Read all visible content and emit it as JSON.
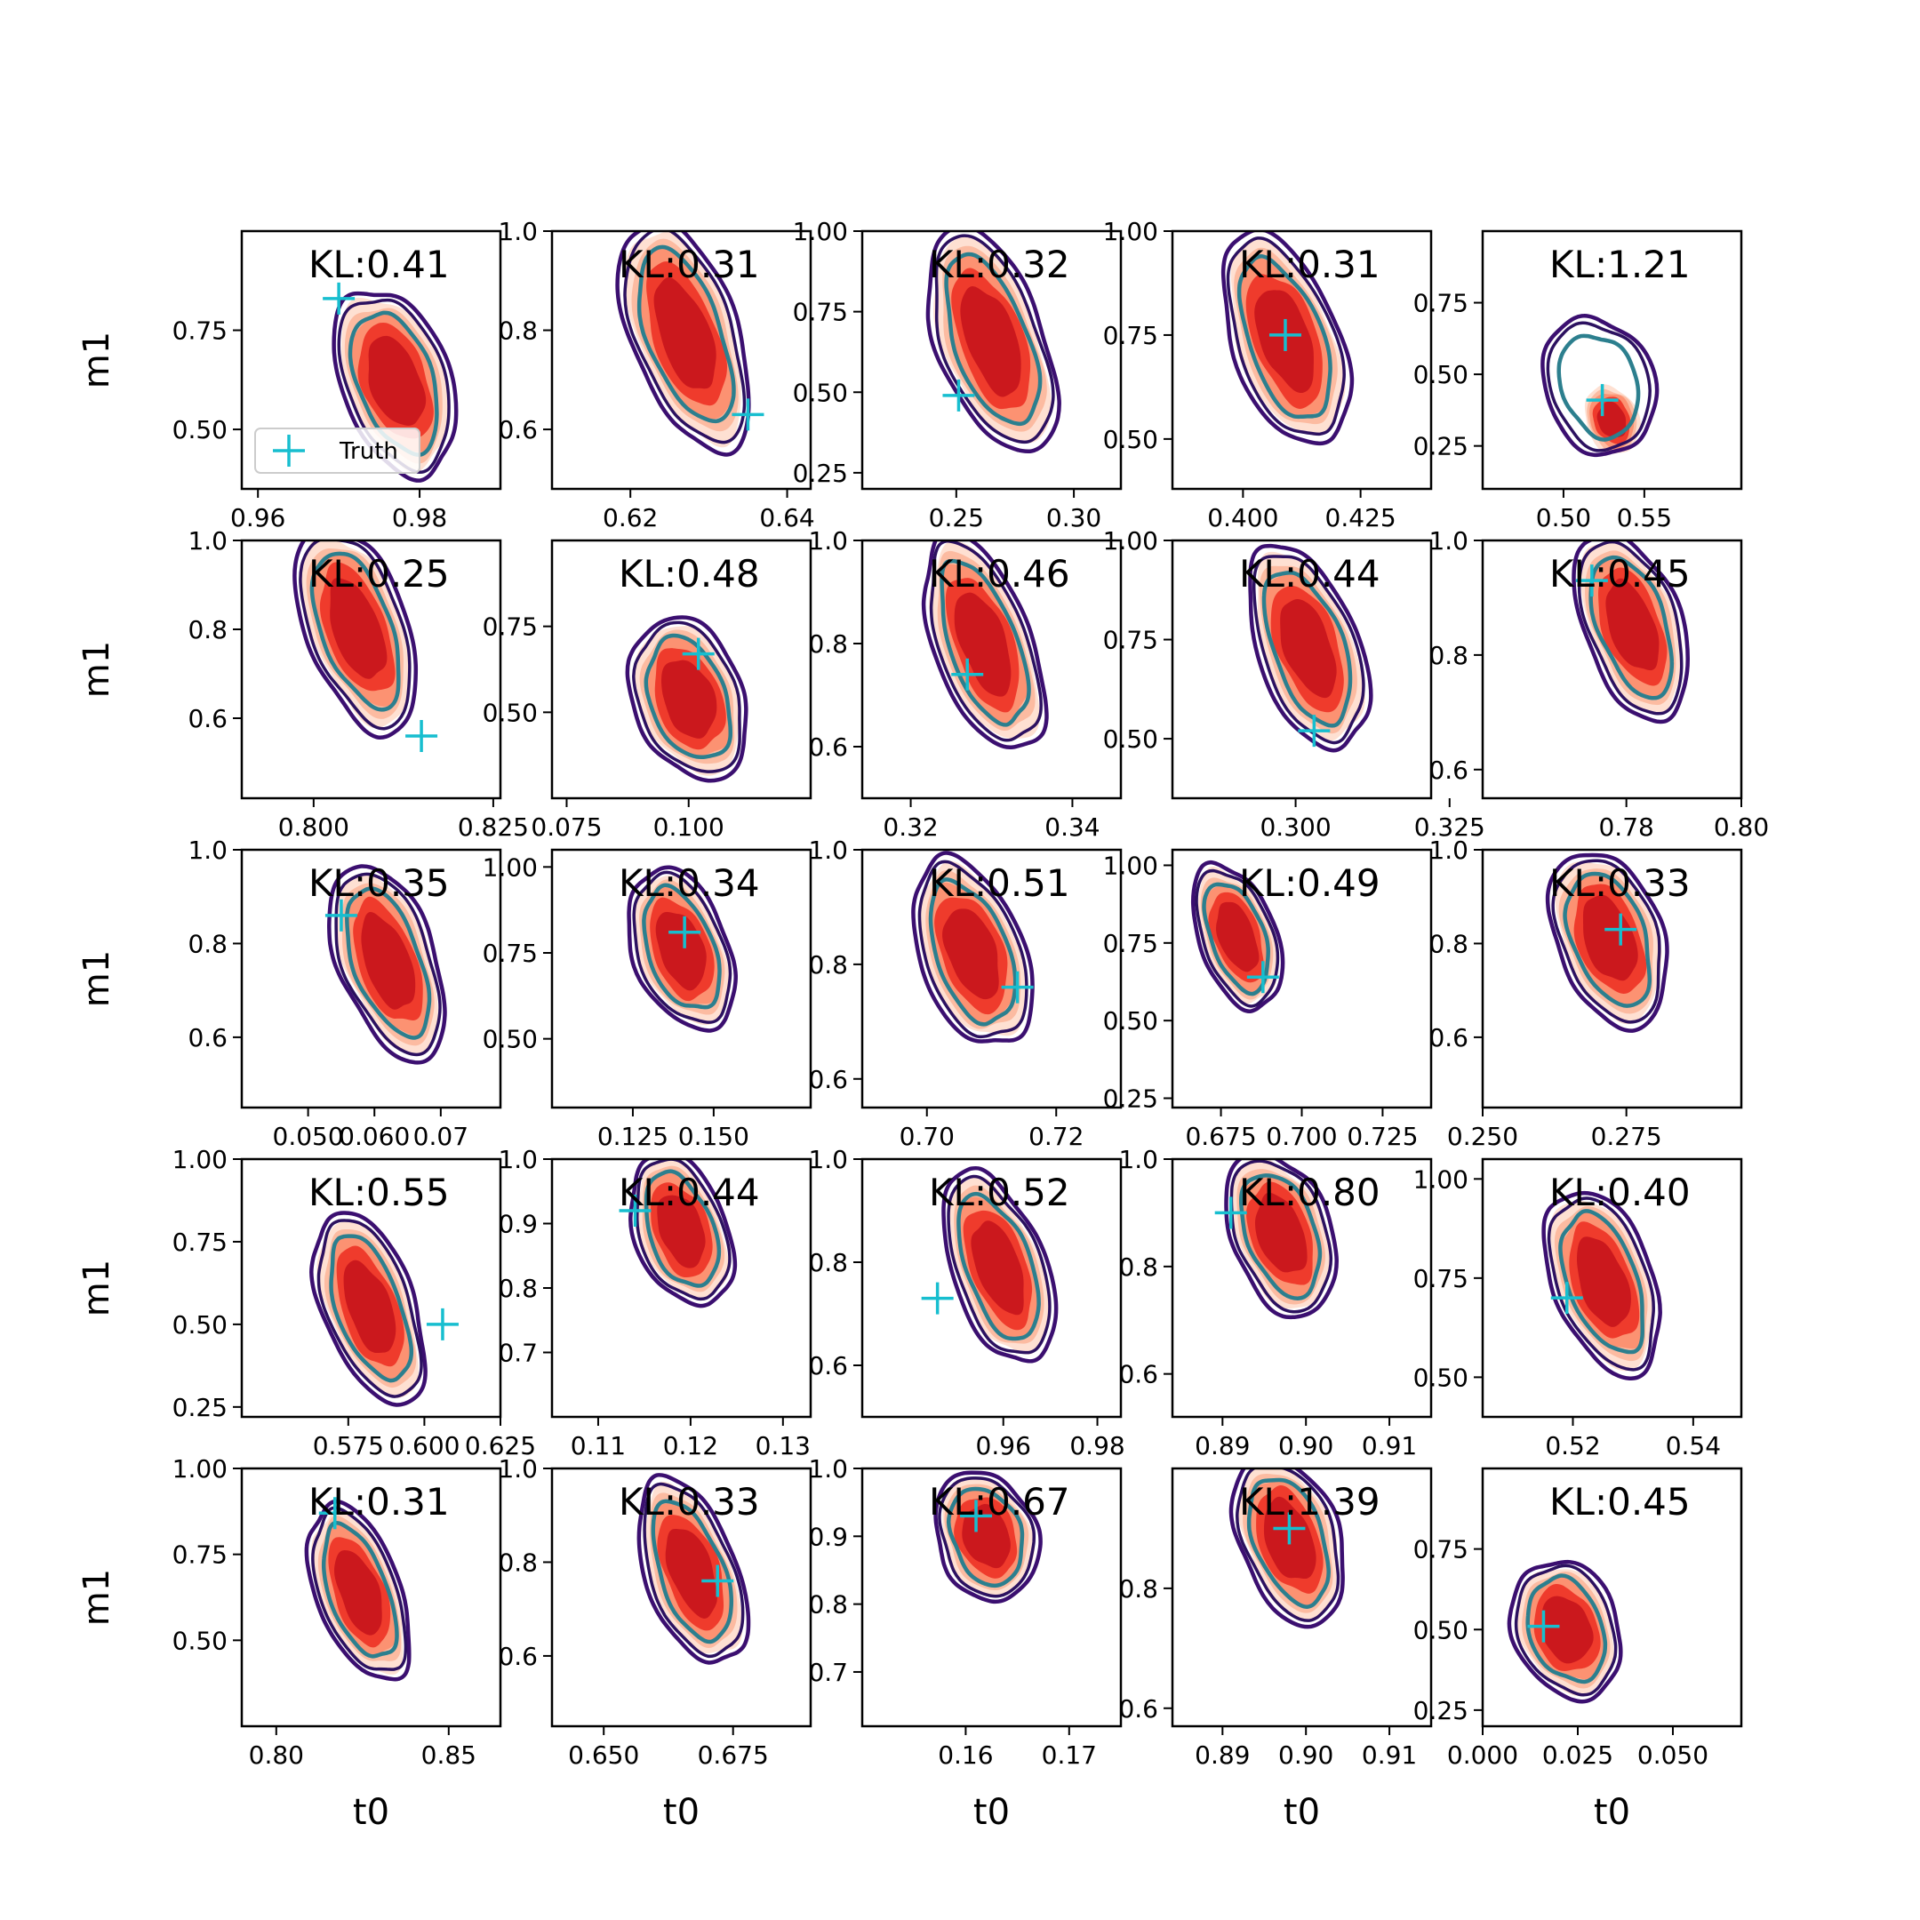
{
  "chart_data": {
    "type": "contour",
    "layout": "5x5 grid of kernel-density contour subplots",
    "xlabel": "t0",
    "ylabel": "m1",
    "legend": {
      "label": "Truth",
      "marker": "+",
      "color": "#17becf",
      "placement": "lower-left of first panel"
    },
    "colors": {
      "filled_levels": [
        "#fee0d2",
        "#fcbba1",
        "#fc9272",
        "#ef3b2c",
        "#cb181d"
      ],
      "outer_contour": "#3b0f70",
      "middle_contour": "#2c1160",
      "inner_contour": "#2c7f8e",
      "truth_marker": "#17becf"
    },
    "panels": [
      {
        "kl": "KL:0.41",
        "xlim": [
          0.958,
          0.99
        ],
        "ylim": [
          0.35,
          1.0
        ],
        "xticks": [
          "0.96",
          "0.98"
        ],
        "xtv": [
          0.96,
          0.98
        ],
        "yticks": [
          "0.75",
          "0.50"
        ],
        "ytv": [
          0.75,
          0.5
        ],
        "truth": [
          0.97,
          0.83
        ],
        "center": [
          0.977,
          0.62
        ],
        "spread": [
          0.006,
          0.2
        ],
        "tilt": -0.9,
        "shift": [
          0,
          0
        ]
      },
      {
        "kl": "KL:0.31",
        "xlim": [
          0.61,
          0.643
        ],
        "ylim": [
          0.48,
          1.0
        ],
        "xticks": [
          "0.62",
          "0.64"
        ],
        "xtv": [
          0.62,
          0.64
        ],
        "yticks": [
          "1.0",
          "0.8",
          "0.6"
        ],
        "ytv": [
          1.0,
          0.8,
          0.6
        ],
        "truth": [
          0.635,
          0.63
        ],
        "center": [
          0.627,
          0.79
        ],
        "spread": [
          0.006,
          0.2
        ],
        "tilt": -0.8,
        "shift": [
          0,
          0
        ]
      },
      {
        "kl": "KL:0.32",
        "xlim": [
          0.21,
          0.32
        ],
        "ylim": [
          0.2,
          1.0
        ],
        "xticks": [
          "0.25",
          "0.30"
        ],
        "xtv": [
          0.25,
          0.3
        ],
        "yticks": [
          "1.00",
          "0.75",
          "0.50",
          "0.25"
        ],
        "ytv": [
          1.0,
          0.75,
          0.5,
          0.25
        ],
        "truth": [
          0.251,
          0.49
        ],
        "center": [
          0.265,
          0.66
        ],
        "spread": [
          0.02,
          0.3
        ],
        "tilt": -0.85,
        "shift": [
          0,
          0
        ]
      },
      {
        "kl": "KL:0.31",
        "xlim": [
          0.385,
          0.44
        ],
        "ylim": [
          0.38,
          1.0
        ],
        "xticks": [
          "0.400",
          "0.425"
        ],
        "xtv": [
          0.4,
          0.425
        ],
        "yticks": [
          "1.00",
          "0.75",
          "0.50"
        ],
        "ytv": [
          1.0,
          0.75,
          0.5
        ],
        "truth": [
          0.409,
          0.75
        ],
        "center": [
          0.409,
          0.74
        ],
        "spread": [
          0.01,
          0.22
        ],
        "tilt": -0.8,
        "shift": [
          0,
          0
        ]
      },
      {
        "kl": "KL:1.21",
        "xlim": [
          0.45,
          0.61
        ],
        "ylim": [
          0.1,
          1.0
        ],
        "xticks": [
          "0.50",
          "0.55"
        ],
        "xtv": [
          0.5,
          0.55
        ],
        "yticks": [
          "0.75",
          "0.50",
          "0.25"
        ],
        "ytv": [
          0.75,
          0.5,
          0.25
        ],
        "truth": [
          0.524,
          0.41
        ],
        "center": [
          0.522,
          0.46
        ],
        "spread": [
          0.03,
          0.2
        ],
        "tilt": -0.85,
        "shift": [
          0.008,
          -0.12
        ]
      },
      {
        "kl": "KL:0.25",
        "xlim": [
          0.79,
          0.826
        ],
        "ylim": [
          0.42,
          1.0
        ],
        "xticks": [
          "0.800",
          "0.825"
        ],
        "xtv": [
          0.8,
          0.825
        ],
        "yticks": [
          "1.0",
          "0.8",
          "0.6"
        ],
        "ytv": [
          1.0,
          0.8,
          0.6
        ],
        "truth": [
          0.815,
          0.56
        ],
        "center": [
          0.806,
          0.8
        ],
        "spread": [
          0.006,
          0.2
        ],
        "tilt": -0.8,
        "shift": [
          0,
          0
        ]
      },
      {
        "kl": "KL:0.48",
        "xlim": [
          0.072,
          0.125
        ],
        "ylim": [
          0.25,
          1.0
        ],
        "xticks": [
          "0.075",
          "0.100"
        ],
        "xtv": [
          0.075,
          0.1
        ],
        "yticks": [
          "0.75",
          "0.50"
        ],
        "ytv": [
          0.75,
          0.5
        ],
        "truth": [
          0.102,
          0.67
        ],
        "center": [
          0.1,
          0.54
        ],
        "spread": [
          0.01,
          0.2
        ],
        "tilt": -0.85,
        "shift": [
          0,
          0
        ]
      },
      {
        "kl": "KL:0.46",
        "xlim": [
          0.314,
          0.346
        ],
        "ylim": [
          0.5,
          1.0
        ],
        "xticks": [
          "0.32",
          "0.34"
        ],
        "xtv": [
          0.32,
          0.34
        ],
        "yticks": [
          "1.0",
          "0.8",
          "0.6"
        ],
        "ytv": [
          1.0,
          0.8,
          0.6
        ],
        "truth": [
          0.327,
          0.74
        ],
        "center": [
          0.329,
          0.8
        ],
        "spread": [
          0.005,
          0.18
        ],
        "tilt": -0.8,
        "shift": [
          0,
          0
        ]
      },
      {
        "kl": "KL:0.44",
        "xlim": [
          0.28,
          0.322
        ],
        "ylim": [
          0.35,
          1.0
        ],
        "xticks": [
          "0.300",
          "0.325"
        ],
        "xtv": [
          0.3,
          0.325
        ],
        "yticks": [
          "1.00",
          "0.75",
          "0.50"
        ],
        "ytv": [
          1.0,
          0.75,
          0.5
        ],
        "truth": [
          0.303,
          0.52
        ],
        "center": [
          0.302,
          0.73
        ],
        "spread": [
          0.007,
          0.22
        ],
        "tilt": -0.8,
        "shift": [
          0,
          0
        ]
      },
      {
        "kl": "KL:0.45",
        "xlim": [
          0.755,
          0.8
        ],
        "ylim": [
          0.55,
          1.0
        ],
        "xticks": [
          "0.78",
          "0.80"
        ],
        "xtv": [
          0.78,
          0.8
        ],
        "yticks": [
          "1.0",
          "0.8",
          "0.6"
        ],
        "ytv": [
          1.0,
          0.8,
          0.6
        ],
        "truth": [
          0.774,
          0.93
        ],
        "center": [
          0.781,
          0.85
        ],
        "spread": [
          0.007,
          0.14
        ],
        "tilt": -0.8,
        "shift": [
          0,
          0
        ]
      },
      {
        "kl": "KL:0.35",
        "xlim": [
          0.04,
          0.079
        ],
        "ylim": [
          0.45,
          1.0
        ],
        "xticks": [
          "0.050",
          "0.060",
          "0.07"
        ],
        "xtv": [
          0.05,
          0.06,
          0.07
        ],
        "yticks": [
          "1.0",
          "0.8",
          "0.6"
        ],
        "ytv": [
          1.0,
          0.8,
          0.6
        ],
        "truth": [
          0.055,
          0.86
        ],
        "center": [
          0.062,
          0.76
        ],
        "spread": [
          0.006,
          0.18
        ],
        "tilt": -0.8,
        "shift": [
          0,
          0
        ]
      },
      {
        "kl": "KL:0.34",
        "xlim": [
          0.1,
          0.18
        ],
        "ylim": [
          0.3,
          1.05
        ],
        "xticks": [
          "0.125",
          "0.150"
        ],
        "xtv": [
          0.125,
          0.15
        ],
        "yticks": [
          "1.00",
          "0.75",
          "0.50"
        ],
        "ytv": [
          1.0,
          0.75,
          0.5
        ],
        "truth": [
          0.141,
          0.81
        ],
        "center": [
          0.14,
          0.76
        ],
        "spread": [
          0.012,
          0.2
        ],
        "tilt": -0.8,
        "shift": [
          0,
          0
        ]
      },
      {
        "kl": "KL:0.51",
        "xlim": [
          0.69,
          0.73
        ],
        "ylim": [
          0.55,
          1.0
        ],
        "xticks": [
          "0.70",
          "0.72"
        ],
        "xtv": [
          0.7,
          0.72
        ],
        "yticks": [
          "1.0",
          "0.8",
          "0.6"
        ],
        "ytv": [
          1.0,
          0.8,
          0.6
        ],
        "truth": [
          0.714,
          0.76
        ],
        "center": [
          0.707,
          0.82
        ],
        "spread": [
          0.007,
          0.14
        ],
        "tilt": -0.8,
        "shift": [
          0,
          0
        ]
      },
      {
        "kl": "KL:0.49",
        "xlim": [
          0.66,
          0.74
        ],
        "ylim": [
          0.22,
          1.05
        ],
        "xticks": [
          "0.675",
          "0.700",
          "0.725"
        ],
        "xtv": [
          0.675,
          0.7,
          0.725
        ],
        "yticks": [
          "1.00",
          "0.75",
          "0.50",
          "0.25"
        ],
        "ytv": [
          1.0,
          0.75,
          0.5,
          0.25
        ],
        "truth": [
          0.688,
          0.64
        ],
        "center": [
          0.68,
          0.77
        ],
        "spread": [
          0.008,
          0.2
        ],
        "tilt": -0.75,
        "shift": [
          0,
          0
        ]
      },
      {
        "kl": "KL:0.33",
        "xlim": [
          0.25,
          0.295
        ],
        "ylim": [
          0.45,
          1.0
        ],
        "xticks": [
          "0.250",
          "0.275"
        ],
        "xtv": [
          0.25,
          0.275
        ],
        "yticks": [
          "1.0",
          "0.8",
          "0.6"
        ],
        "ytv": [
          1.0,
          0.8,
          0.6
        ],
        "truth": [
          0.274,
          0.83
        ],
        "center": [
          0.272,
          0.81
        ],
        "spread": [
          0.008,
          0.16
        ],
        "tilt": -0.8,
        "shift": [
          0,
          0
        ]
      },
      {
        "kl": "KL:0.55",
        "xlim": [
          0.54,
          0.625
        ],
        "ylim": [
          0.22,
          1.0
        ],
        "xticks": [
          "0.575",
          "0.600",
          "0.625"
        ],
        "xtv": [
          0.575,
          0.6,
          0.625
        ],
        "yticks": [
          "1.00",
          "0.75",
          "0.50",
          "0.25"
        ],
        "ytv": [
          1.0,
          0.75,
          0.5,
          0.25
        ],
        "truth": [
          0.606,
          0.5
        ],
        "center": [
          0.582,
          0.55
        ],
        "spread": [
          0.012,
          0.25
        ],
        "tilt": -0.8,
        "shift": [
          0,
          0
        ]
      },
      {
        "kl": "KL:0.44",
        "xlim": [
          0.105,
          0.133
        ],
        "ylim": [
          0.6,
          1.0
        ],
        "xticks": [
          "0.11",
          "0.12",
          "0.13"
        ],
        "xtv": [
          0.11,
          0.12,
          0.13
        ],
        "yticks": [
          "1.0",
          "0.9",
          "0.8",
          "0.7"
        ],
        "ytv": [
          1.0,
          0.9,
          0.8,
          0.7
        ],
        "truth": [
          0.114,
          0.92
        ],
        "center": [
          0.119,
          0.89
        ],
        "spread": [
          0.004,
          0.1
        ],
        "tilt": -0.8,
        "shift": [
          0,
          0
        ]
      },
      {
        "kl": "KL:0.52",
        "xlim": [
          0.93,
          0.985
        ],
        "ylim": [
          0.5,
          1.0
        ],
        "xticks": [
          "0.96",
          "0.98"
        ],
        "xtv": [
          0.96,
          0.98
        ],
        "yticks": [
          "1.0",
          "0.8",
          "0.6"
        ],
        "ytv": [
          1.0,
          0.8,
          0.6
        ],
        "truth": [
          0.946,
          0.73
        ],
        "center": [
          0.959,
          0.79
        ],
        "spread": [
          0.008,
          0.16
        ],
        "tilt": -0.8,
        "shift": [
          0,
          0
        ]
      },
      {
        "kl": "KL:0.80",
        "xlim": [
          0.884,
          0.915
        ],
        "ylim": [
          0.52,
          1.0
        ],
        "xticks": [
          "0.89",
          "0.90",
          "0.91"
        ],
        "xtv": [
          0.89,
          0.9,
          0.91
        ],
        "yticks": [
          "1.0",
          "0.8",
          "0.6"
        ],
        "ytv": [
          1.0,
          0.8,
          0.6
        ],
        "truth": [
          0.891,
          0.9
        ],
        "center": [
          0.897,
          0.86
        ],
        "spread": [
          0.005,
          0.13
        ],
        "tilt": -0.8,
        "shift": [
          0,
          0
        ]
      },
      {
        "kl": "KL:0.40",
        "xlim": [
          0.505,
          0.548
        ],
        "ylim": [
          0.4,
          1.05
        ],
        "xticks": [
          "0.52",
          "0.54"
        ],
        "xtv": [
          0.52,
          0.54
        ],
        "yticks": [
          "1.00",
          "0.75",
          "0.50"
        ],
        "ytv": [
          1.0,
          0.75,
          0.5
        ],
        "truth": [
          0.519,
          0.7
        ],
        "center": [
          0.525,
          0.74
        ],
        "spread": [
          0.007,
          0.2
        ],
        "tilt": -0.8,
        "shift": [
          0,
          0
        ]
      },
      {
        "kl": "KL:0.31",
        "xlim": [
          0.79,
          0.865
        ],
        "ylim": [
          0.25,
          1.0
        ],
        "xticks": [
          "0.80",
          "0.85"
        ],
        "xtv": [
          0.8,
          0.85
        ],
        "yticks": [
          "1.00",
          "0.75",
          "0.50"
        ],
        "ytv": [
          1.0,
          0.75,
          0.5
        ],
        "truth": [
          0.817,
          0.87
        ],
        "center": [
          0.824,
          0.64
        ],
        "spread": [
          0.009,
          0.22
        ],
        "tilt": -0.75,
        "shift": [
          0,
          0
        ]
      },
      {
        "kl": "KL:0.33",
        "xlim": [
          0.64,
          0.69
        ],
        "ylim": [
          0.45,
          1.0
        ],
        "xticks": [
          "0.650",
          "0.675"
        ],
        "xtv": [
          0.65,
          0.675
        ],
        "yticks": [
          "1.0",
          "0.8",
          "0.6"
        ],
        "ytv": [
          1.0,
          0.8,
          0.6
        ],
        "truth": [
          0.672,
          0.76
        ],
        "center": [
          0.667,
          0.78
        ],
        "spread": [
          0.007,
          0.17
        ],
        "tilt": -0.8,
        "shift": [
          0,
          0
        ]
      },
      {
        "kl": "KL:0.67",
        "xlim": [
          0.15,
          0.175
        ],
        "ylim": [
          0.62,
          1.0
        ],
        "xticks": [
          "0.16",
          "0.17"
        ],
        "xtv": [
          0.16,
          0.17
        ],
        "yticks": [
          "1.0",
          "0.9",
          "0.8",
          "0.7"
        ],
        "ytv": [
          1.0,
          0.9,
          0.8,
          0.7
        ],
        "truth": [
          0.161,
          0.93
        ],
        "center": [
          0.162,
          0.9
        ],
        "spread": [
          0.004,
          0.08
        ],
        "tilt": -0.8,
        "shift": [
          0,
          0
        ]
      },
      {
        "kl": "KL:1.39",
        "xlim": [
          0.884,
          0.915
        ],
        "ylim": [
          0.57,
          1.0
        ],
        "xticks": [
          "0.89",
          "0.90",
          "0.91"
        ],
        "xtv": [
          0.89,
          0.9,
          0.91
        ],
        "yticks": [
          "0.8",
          "0.6"
        ],
        "ytv": [
          0.8,
          0.6
        ],
        "truth": [
          0.898,
          0.9
        ],
        "center": [
          0.898,
          0.88
        ],
        "spread": [
          0.005,
          0.12
        ],
        "tilt": -0.8,
        "shift": [
          0,
          0
        ]
      },
      {
        "kl": "KL:0.45",
        "xlim": [
          0.0,
          0.068
        ],
        "ylim": [
          0.2,
          1.0
        ],
        "xticks": [
          "0.000",
          "0.025",
          "0.050"
        ],
        "xtv": [
          0.0,
          0.025,
          0.05
        ],
        "yticks": [
          "0.75",
          "0.50",
          "0.25"
        ],
        "ytv": [
          0.75,
          0.5,
          0.25
        ],
        "truth": [
          0.016,
          0.51
        ],
        "center": [
          0.022,
          0.5
        ],
        "spread": [
          0.012,
          0.18
        ],
        "tilt": -0.75,
        "shift": [
          0,
          0
        ]
      }
    ]
  }
}
